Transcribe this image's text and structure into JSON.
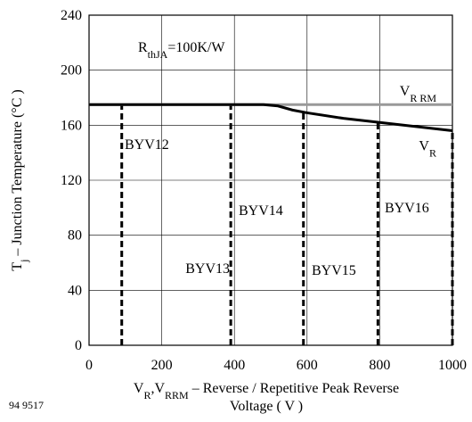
{
  "chart_data": {
    "type": "line",
    "annotation": [
      {
        "text": "R"
      },
      {
        "text": "thJA",
        "sub": true
      },
      {
        "text": "=100K/W"
      }
    ],
    "y_label": [
      {
        "text": "T"
      },
      {
        "text": "j",
        "sub": true
      },
      {
        "text": " – Junction Temperature (°C )"
      }
    ],
    "x_label": [
      [
        {
          "text": "V"
        },
        {
          "text": "R",
          "sub": true
        },
        {
          "text": ",V"
        },
        {
          "text": "RRM",
          "sub": true
        },
        {
          "text": " – Reverse / Repetitive Peak Reverse"
        }
      ],
      [
        {
          "text": "Voltage ( V )"
        }
      ]
    ],
    "figure_number": "94 9517",
    "xlim": [
      0,
      1000
    ],
    "ylim": [
      0,
      240
    ],
    "xticks": [
      0,
      200,
      400,
      600,
      800,
      1000
    ],
    "yticks": [
      0,
      40,
      80,
      120,
      160,
      200,
      240
    ],
    "grid": true,
    "series": [
      {
        "name": [
          {
            "text": "V"
          },
          {
            "text": "R RM",
            "sub": true
          }
        ],
        "color": "#999999",
        "x": [
          0,
          1000
        ],
        "values": [
          175,
          175
        ]
      },
      {
        "name": [
          {
            "text": "V"
          },
          {
            "text": "R",
            "sub": true
          }
        ],
        "color": "#000000",
        "x": [
          0,
          480,
          520,
          560,
          600,
          700,
          800,
          900,
          1000
        ],
        "values": [
          175,
          175,
          174,
          171,
          169,
          165,
          162,
          159,
          156
        ]
      }
    ],
    "markers": [
      {
        "label": "BYV12",
        "x": 90,
        "top": 175
      },
      {
        "label": "BYV13",
        "x": 390,
        "top": 175
      },
      {
        "label": "BYV14",
        "x": 590,
        "top": 169
      },
      {
        "label": "BYV15",
        "x": 795,
        "top": 162
      },
      {
        "label": "BYV16",
        "x": 1000,
        "top": 156
      }
    ]
  }
}
